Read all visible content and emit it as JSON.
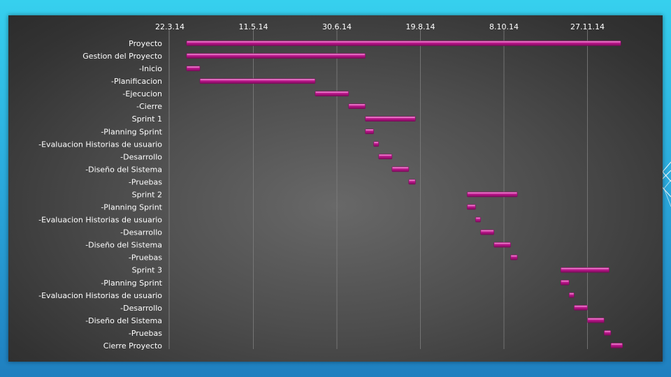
{
  "colors": {
    "bar": "#c0188f",
    "bar_light": "#e556bc",
    "bar_dark": "#7a0a59",
    "gridline": "#7f7f7f",
    "text": "#ffffff"
  },
  "chart_data": {
    "type": "bar",
    "orientation": "horizontal",
    "x_axis": {
      "position": "top",
      "range": [
        "2014-03-22",
        "2014-12-31"
      ],
      "ticks": [
        {
          "date": "2014-03-22",
          "label": "22.3.14"
        },
        {
          "date": "2014-05-11",
          "label": "11.5.14"
        },
        {
          "date": "2014-06-30",
          "label": "30.6.14"
        },
        {
          "date": "2014-08-19",
          "label": "19.8.14"
        },
        {
          "date": "2014-10-08",
          "label": "8.10.14"
        },
        {
          "date": "2014-11-27",
          "label": "27.11.14"
        }
      ]
    },
    "grid": true,
    "legend": "none",
    "tasks": [
      {
        "name": "Proyecto",
        "start": "2014-04-01",
        "end": "2014-12-17"
      },
      {
        "name": "Gestion del Proyecto",
        "start": "2014-04-01",
        "end": "2014-07-17"
      },
      {
        "name": "-Inicio",
        "start": "2014-04-01",
        "end": "2014-04-09"
      },
      {
        "name": "-Planificacion",
        "start": "2014-04-09",
        "end": "2014-06-17"
      },
      {
        "name": "-Ejecucion",
        "start": "2014-06-17",
        "end": "2014-07-07"
      },
      {
        "name": "-Cierre",
        "start": "2014-07-07",
        "end": "2014-07-17"
      },
      {
        "name": "Sprint 1",
        "start": "2014-07-17",
        "end": "2014-08-16"
      },
      {
        "name": "-Planning Sprint",
        "start": "2014-07-17",
        "end": "2014-07-22"
      },
      {
        "name": "-Evaluacion Historias de usuario",
        "start": "2014-07-22",
        "end": "2014-07-25"
      },
      {
        "name": "-Desarrollo",
        "start": "2014-07-25",
        "end": "2014-08-02"
      },
      {
        "name": "-Diseño del Sistema",
        "start": "2014-08-02",
        "end": "2014-08-12"
      },
      {
        "name": "-Pruebas",
        "start": "2014-08-12",
        "end": "2014-08-16"
      },
      {
        "name": "Sprint 2",
        "start": "2014-09-16",
        "end": "2014-10-16"
      },
      {
        "name": "-Planning Sprint",
        "start": "2014-09-16",
        "end": "2014-09-21"
      },
      {
        "name": "-Evaluacion Historias de usuario",
        "start": "2014-09-21",
        "end": "2014-09-24"
      },
      {
        "name": "-Desarrollo",
        "start": "2014-09-24",
        "end": "2014-10-02"
      },
      {
        "name": "-Diseño del Sistema",
        "start": "2014-10-02",
        "end": "2014-10-12"
      },
      {
        "name": "-Pruebas",
        "start": "2014-10-12",
        "end": "2014-10-16"
      },
      {
        "name": "Sprint 3",
        "start": "2014-11-11",
        "end": "2014-12-10"
      },
      {
        "name": "-Planning Sprint",
        "start": "2014-11-11",
        "end": "2014-11-16"
      },
      {
        "name": "-Evaluacion Historias de usuario",
        "start": "2014-11-16",
        "end": "2014-11-19"
      },
      {
        "name": "-Desarrollo",
        "start": "2014-11-19",
        "end": "2014-11-27"
      },
      {
        "name": "-Diseño del Sistema",
        "start": "2014-11-27",
        "end": "2014-12-07"
      },
      {
        "name": "-Pruebas",
        "start": "2014-12-07",
        "end": "2014-12-11"
      },
      {
        "name": "Cierre Proyecto",
        "start": "2014-12-11",
        "end": "2014-12-18"
      }
    ]
  }
}
